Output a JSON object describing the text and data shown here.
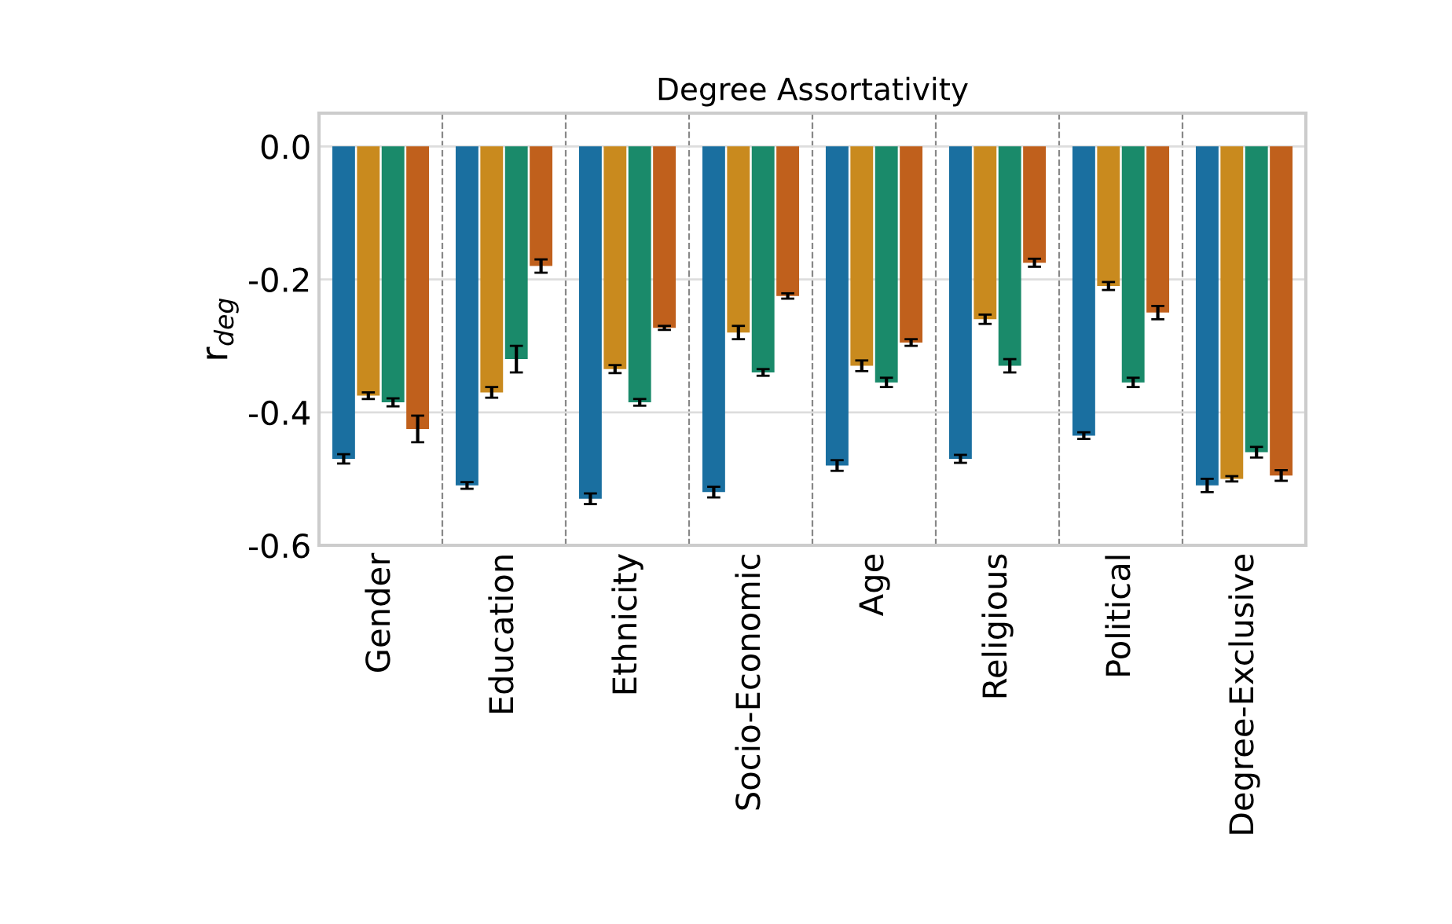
{
  "chart_data": {
    "type": "bar",
    "title": "Degree Assortativity",
    "ylabel": "r$_{deg}$",
    "categories": [
      "Gender",
      "Education",
      "Ethnicity",
      "Socio-Economic",
      "Age",
      "Religious",
      "Political",
      "Degree-Exclusive"
    ],
    "series": [
      {
        "color": "#1a6fa0",
        "values": [
          -0.47,
          -0.51,
          -0.53,
          -0.52,
          -0.48,
          -0.47,
          -0.435,
          -0.51
        ],
        "errors": [
          0.007,
          0.005,
          0.008,
          0.008,
          0.008,
          0.006,
          0.005,
          0.01
        ]
      },
      {
        "color": "#c98a1e",
        "values": [
          -0.375,
          -0.37,
          -0.335,
          -0.28,
          -0.33,
          -0.26,
          -0.21,
          -0.5
        ],
        "errors": [
          0.005,
          0.008,
          0.006,
          0.01,
          0.008,
          0.007,
          0.006,
          0.004
        ]
      },
      {
        "color": "#1a8a6a",
        "values": [
          -0.385,
          -0.32,
          -0.385,
          -0.34,
          -0.355,
          -0.33,
          -0.355,
          -0.46
        ],
        "errors": [
          0.006,
          0.02,
          0.005,
          0.005,
          0.007,
          0.01,
          0.007,
          0.008
        ]
      },
      {
        "color": "#c0601c",
        "values": [
          -0.425,
          -0.18,
          -0.273,
          -0.225,
          -0.295,
          -0.175,
          -0.25,
          -0.495
        ],
        "errors": [
          0.02,
          0.01,
          0.003,
          0.004,
          0.005,
          0.006,
          0.01,
          0.008
        ]
      }
    ],
    "ylim": [
      -0.6,
      0.05
    ],
    "yticks": [
      {
        "value": -0.6,
        "label": "-0.6"
      },
      {
        "value": -0.4,
        "label": "-0.4"
      },
      {
        "value": -0.2,
        "label": "-0.2"
      },
      {
        "value": 0.0,
        "label": "0.0"
      }
    ],
    "grid": "y"
  }
}
